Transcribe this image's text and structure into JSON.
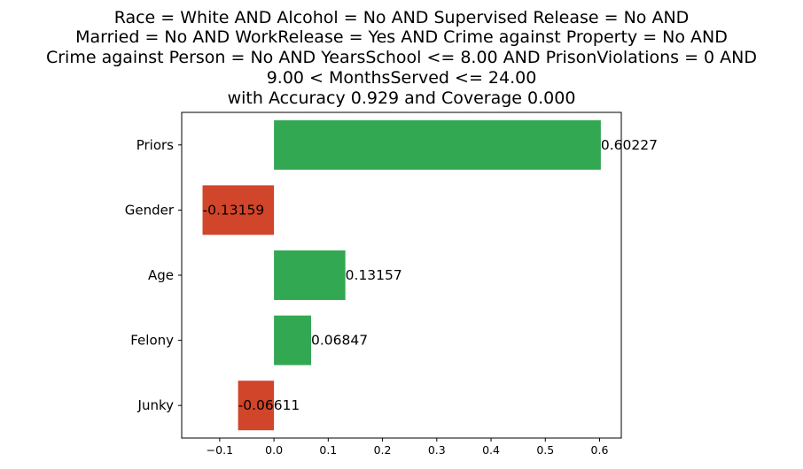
{
  "chart_data": {
    "type": "bar",
    "orientation": "horizontal",
    "title_lines": [
      "Race = White AND Alcohol = No AND Supervised Release = No AND",
      "Married = No AND WorkRelease = Yes AND Crime against Property = No AND",
      "Crime against Person = No AND YearsSchool <= 8.00 AND PrisonViolations = 0 AND",
      "9.00 < MonthsServed <= 24.00",
      "with Accuracy 0.929 and Coverage 0.000"
    ],
    "categories": [
      "Priors",
      "Gender",
      "Age",
      "Felony",
      "Junky"
    ],
    "values": [
      0.60227,
      -0.13159,
      0.13157,
      0.06847,
      -0.06611
    ],
    "value_labels": [
      "0.60227",
      "-0.13159",
      "0.13157",
      "0.06847",
      "-0.06611"
    ],
    "xlim": [
      -0.17,
      0.64
    ],
    "xticks": [
      -0.1,
      0.0,
      0.1,
      0.2,
      0.3,
      0.4,
      0.5,
      0.6
    ],
    "xtick_labels": [
      "−0.1",
      "0.0",
      "0.1",
      "0.2",
      "0.3",
      "0.4",
      "0.5",
      "0.6"
    ],
    "grid": false,
    "colors": {
      "positive": "#33a853",
      "negative": "#d1452a"
    }
  }
}
